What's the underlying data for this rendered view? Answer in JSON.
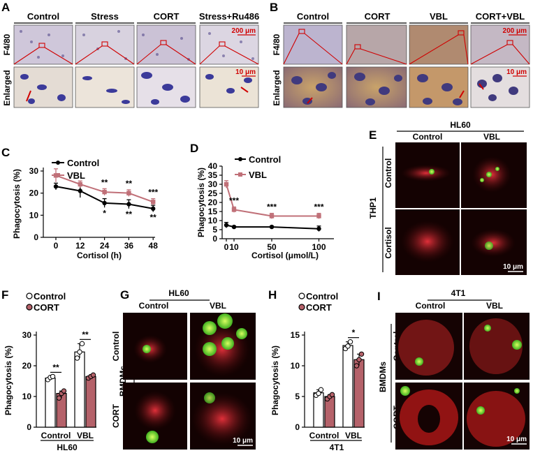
{
  "panel_letters": {
    "A": "A",
    "B": "B",
    "C": "C",
    "D": "D",
    "E": "E",
    "F": "F",
    "G": "G",
    "H": "H",
    "I": "I"
  },
  "colors": {
    "control": "#000000",
    "vbl": "#c07078",
    "cort_bar": "#b5626a",
    "fluor_bg": "#120303",
    "ihc_bg": "#d6d0df"
  },
  "panel_A": {
    "columns": [
      "Control",
      "Stress",
      "CORT",
      "Stress+Ru486"
    ],
    "row_labels": [
      "F4/80",
      "Enlarged"
    ],
    "scale_top": "200 μm",
    "scale_bottom": "10 μm"
  },
  "panel_B": {
    "columns": [
      "Control",
      "CORT",
      "VBL",
      "CORT+VBL"
    ],
    "row_labels": [
      "F4/80",
      "Enlarged"
    ],
    "scale_top": "200 μm",
    "scale_bottom": "10 μm"
  },
  "panel_E": {
    "top_label": "HL60",
    "columns": [
      "Control",
      "VBL"
    ],
    "side_label": "THP1",
    "rows": [
      "Control",
      "Cortisol"
    ],
    "scale": "10 μm"
  },
  "panel_G": {
    "top_label": "HL60",
    "columns": [
      "Control",
      "VBL"
    ],
    "side_label": "BMDMs",
    "rows": [
      "Control",
      "CORT"
    ],
    "scale": "10 μm"
  },
  "panel_I": {
    "top_label": "4T1",
    "columns": [
      "Control",
      "VBL"
    ],
    "side_label": "BMDMs",
    "rows": [
      "Control",
      "CORT"
    ],
    "scale": "10 μm"
  },
  "chart_data": [
    {
      "panel": "C",
      "type": "line",
      "xlabel": "Cortisol (h)",
      "ylabel": "Phagocytosis (%)",
      "x": [
        0,
        12,
        24,
        36,
        48
      ],
      "xticks": [
        "0",
        "12",
        "24",
        "36",
        "48"
      ],
      "ylim": [
        0,
        30
      ],
      "yticks": [
        "0",
        "10",
        "20",
        "30"
      ],
      "series": [
        {
          "name": "Control",
          "values": [
            23,
            21,
            15.5,
            15,
            13
          ],
          "err": [
            1.5,
            3,
            2,
            2,
            1.5
          ]
        },
        {
          "name": "VBL",
          "values": [
            28,
            24,
            20.5,
            20,
            16
          ],
          "err": [
            3,
            1.5,
            1.5,
            1.5,
            1.5
          ]
        }
      ],
      "annotations": [
        {
          "x": 24,
          "series": "VBL",
          "text": "**"
        },
        {
          "x": 36,
          "series": "VBL",
          "text": "**"
        },
        {
          "x": 48,
          "series": "VBL",
          "text": "***"
        },
        {
          "x": 24,
          "series": "Control",
          "text": "*"
        },
        {
          "x": 36,
          "series": "Control",
          "text": "**"
        },
        {
          "x": 48,
          "series": "Control",
          "text": "**"
        }
      ]
    },
    {
      "panel": "D",
      "type": "line",
      "xlabel": "Cortisol (μmol/L)",
      "ylabel": "Phagocytosis (%)",
      "x": [
        0,
        10,
        50,
        100
      ],
      "xticks": [
        "0",
        "10",
        "50",
        "100"
      ],
      "ylim": [
        0,
        40
      ],
      "yticks": [
        "0",
        "5",
        "10",
        "15",
        "20",
        "25",
        "30",
        "35",
        "40"
      ],
      "series": [
        {
          "name": "Control",
          "values": [
            7.5,
            6.5,
            6.5,
            5.5
          ],
          "err": [
            1.5,
            0.5,
            0.5,
            1.5
          ]
        },
        {
          "name": "VBL",
          "values": [
            30,
            16,
            12.5,
            12.5
          ],
          "err": [
            2,
            1.5,
            1.5,
            1.5
          ]
        }
      ],
      "annotations": [
        {
          "x": 10,
          "text": "***"
        },
        {
          "x": 50,
          "text": "***"
        },
        {
          "x": 100,
          "text": "***"
        }
      ]
    },
    {
      "panel": "F",
      "type": "bar",
      "categories": [
        "Control",
        "VBL"
      ],
      "group_label": "HL60",
      "ylabel": "Phagocytosis (%)",
      "ylim": [
        0,
        30
      ],
      "yticks": [
        "0",
        "10",
        "20",
        "30"
      ],
      "series": [
        {
          "name": "Control",
          "values": [
            16,
            24.5
          ],
          "points": [
            [
              15.5,
              16.2,
              16.5
            ],
            [
              22.5,
              24.5,
              27.2
            ]
          ]
        },
        {
          "name": "CORT",
          "values": [
            11,
            16.5
          ],
          "points": [
            [
              9.5,
              11,
              11.8
            ],
            [
              16,
              16.5,
              17
            ]
          ]
        }
      ],
      "significance": [
        "**",
        "**"
      ]
    },
    {
      "panel": "H",
      "type": "bar",
      "categories": [
        "Control",
        "VBL"
      ],
      "group_label": "4T1",
      "ylabel": "Phagocytosis (%)",
      "ylim": [
        0,
        15
      ],
      "yticks": [
        "0",
        "5",
        "10",
        "15"
      ],
      "series": [
        {
          "name": "Control",
          "values": [
            5.6,
            13.3
          ],
          "points": [
            [
              5.2,
              5.5,
              6.1
            ],
            [
              12.8,
              13.2,
              13.9
            ]
          ]
        },
        {
          "name": "CORT",
          "values": [
            5,
            11
          ],
          "points": [
            [
              4.6,
              5,
              5.3
            ],
            [
              10,
              11,
              11.9
            ]
          ]
        }
      ],
      "significance": [
        "",
        "*"
      ]
    }
  ]
}
